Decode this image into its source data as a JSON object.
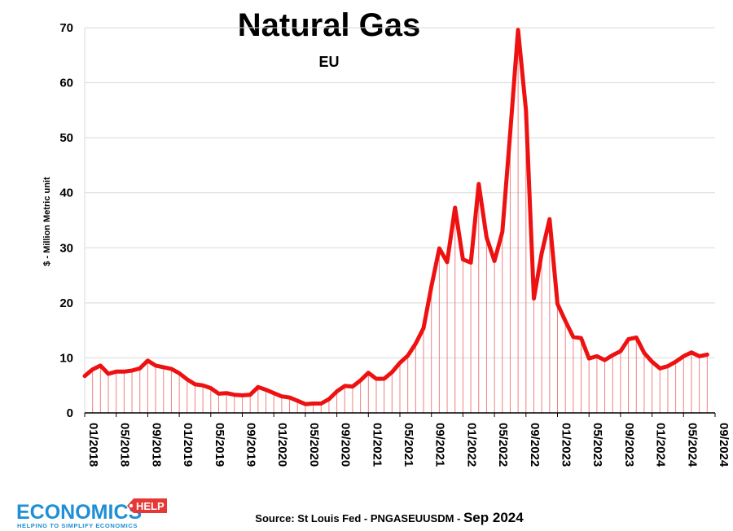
{
  "chart_data": {
    "type": "area",
    "title": "Natural Gas",
    "subtitle": "EU",
    "ylabel": "$ - Million Metric unit",
    "xlabel": "",
    "ylim": [
      0,
      70
    ],
    "yticks": [
      0,
      10,
      20,
      30,
      40,
      50,
      60,
      70
    ],
    "xtick_labels": [
      "01/2018",
      "05/2018",
      "09/2018",
      "01/2019",
      "05/2019",
      "09/2019",
      "01/2020",
      "05/2020",
      "09/2020",
      "01/2021",
      "05/2021",
      "09/2021",
      "01/2022",
      "05/2022",
      "09/2022",
      "01/2023",
      "05/2023",
      "09/2023",
      "01/2024",
      "05/2024",
      "09/2024"
    ],
    "grid": "horizontal",
    "legend": "none",
    "line_color": "#ee1111",
    "fill_color": "#f08080",
    "series": [
      {
        "x": [
          "2018-01",
          "2018-02",
          "2018-03",
          "2018-04",
          "2018-05",
          "2018-06",
          "2018-07",
          "2018-08",
          "2018-09",
          "2018-10",
          "2018-11",
          "2018-12",
          "2019-01",
          "2019-02",
          "2019-03",
          "2019-04",
          "2019-05",
          "2019-06",
          "2019-07",
          "2019-08",
          "2019-09",
          "2019-10",
          "2019-11",
          "2019-12",
          "2020-01",
          "2020-02",
          "2020-03",
          "2020-04",
          "2020-05",
          "2020-06",
          "2020-07",
          "2020-08",
          "2020-09",
          "2020-10",
          "2020-11",
          "2020-12",
          "2021-01",
          "2021-02",
          "2021-03",
          "2021-04",
          "2021-05",
          "2021-06",
          "2021-07",
          "2021-08",
          "2021-09",
          "2021-10",
          "2021-11",
          "2021-12",
          "2022-01",
          "2022-02",
          "2022-03",
          "2022-04",
          "2022-05",
          "2022-06",
          "2022-07",
          "2022-08",
          "2022-09",
          "2022-10",
          "2022-11",
          "2022-12",
          "2023-01",
          "2023-02",
          "2023-03",
          "2023-04",
          "2023-05",
          "2023-06",
          "2023-07",
          "2023-08",
          "2023-09",
          "2023-10",
          "2023-11",
          "2023-12",
          "2024-01",
          "2024-02",
          "2024-03",
          "2024-04",
          "2024-05",
          "2024-06",
          "2024-07",
          "2024-08"
        ],
        "values": [
          6.7,
          7.9,
          8.6,
          7.1,
          7.5,
          7.5,
          7.7,
          8.1,
          9.5,
          8.6,
          8.3,
          8.0,
          7.2,
          6.1,
          5.2,
          5.0,
          4.5,
          3.5,
          3.6,
          3.3,
          3.2,
          3.3,
          4.7,
          4.2,
          3.6,
          3.0,
          2.8,
          2.2,
          1.6,
          1.7,
          1.7,
          2.5,
          3.9,
          4.9,
          4.8,
          5.9,
          7.3,
          6.2,
          6.2,
          7.4,
          9.1,
          10.4,
          12.6,
          15.4,
          23.0,
          29.9,
          27.4,
          37.3,
          27.9,
          27.3,
          41.6,
          31.9,
          27.6,
          32.9,
          51.0,
          69.6,
          55.0,
          20.8,
          29.0,
          35.2,
          19.8,
          16.7,
          13.8,
          13.6,
          9.9,
          10.3,
          9.6,
          10.5,
          11.2,
          13.4,
          13.7,
          10.9,
          9.3,
          8.1,
          8.5,
          9.3,
          10.3,
          11.0,
          10.3,
          10.6
        ]
      }
    ]
  },
  "source": {
    "text": "Source: St Louis Fed - PNGASEUUSDM - ",
    "date": "Sep 2024"
  },
  "logo": {
    "main": "ECONOMICS",
    "badge": "HELP",
    "tagline": "HELPING TO SIMPLIFY ECONOMICS"
  }
}
